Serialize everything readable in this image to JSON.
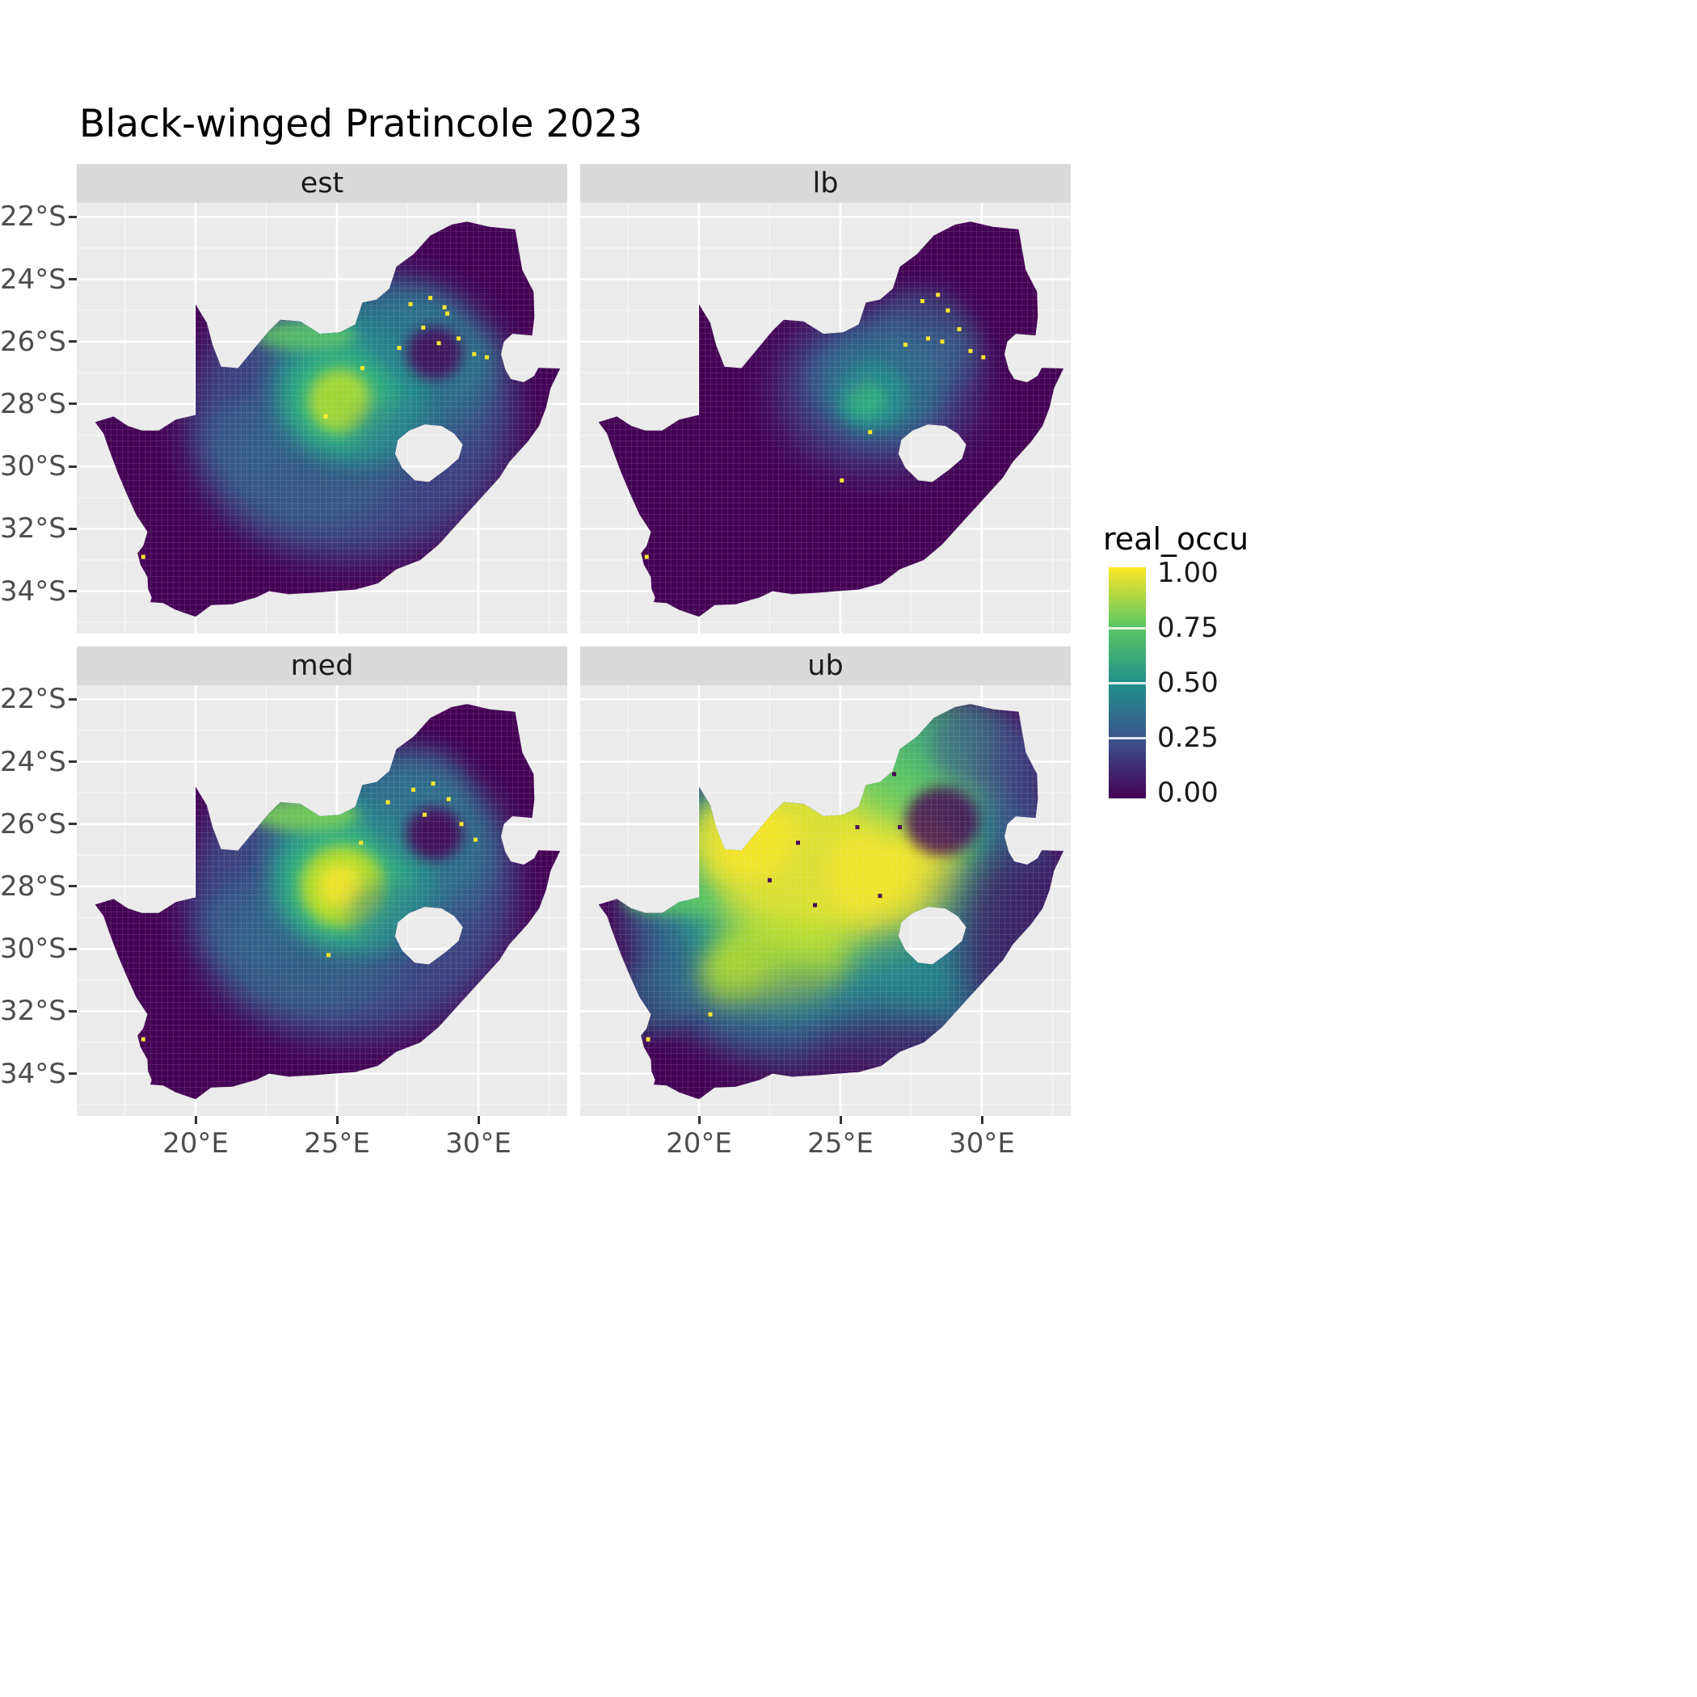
{
  "page": {
    "background": "#ffffff"
  },
  "chart_data": {
    "type": "heatmap",
    "title": "Black-winged Pratincole 2023",
    "region": "South Africa (Lesotho shown as hole, Eswatini notch on east)",
    "palette": "viridis",
    "style": {
      "panel_bg": "#ebebeb",
      "strip_bg": "#d9d9d9",
      "grid_color": "#ffffff",
      "base_color": "#440154",
      "axis_text_color": "#4d4d4d",
      "strip_text_color": "#1a1a1a"
    },
    "x_axis": {
      "ticks": [
        {
          "value": 20,
          "label": "20°E"
        },
        {
          "value": 25,
          "label": "25°E"
        },
        {
          "value": 30,
          "label": "30°E"
        }
      ],
      "minor": [
        17.5,
        22.5,
        27.5,
        32.5
      ],
      "range": [
        15.8,
        33.15
      ]
    },
    "y_axis": {
      "ticks": [
        {
          "value": -22,
          "label": "22°S"
        },
        {
          "value": -24,
          "label": "24°S"
        },
        {
          "value": -26,
          "label": "26°S"
        },
        {
          "value": -28,
          "label": "28°S"
        },
        {
          "value": -30,
          "label": "30°S"
        },
        {
          "value": -32,
          "label": "32°S"
        },
        {
          "value": -34,
          "label": "34°S"
        }
      ],
      "minor": [
        -23,
        -25,
        -27,
        -29,
        -31,
        -33,
        -35
      ],
      "range": [
        -35.35,
        -21.55
      ]
    },
    "legend": {
      "title": "real_occu",
      "position": "right",
      "ticks": [
        {
          "value": 1.0,
          "label": "1.00"
        },
        {
          "value": 0.75,
          "label": "0.75"
        },
        {
          "value": 0.5,
          "label": "0.50"
        },
        {
          "value": 0.25,
          "label": "0.25"
        },
        {
          "value": 0.0,
          "label": "0.00"
        }
      ],
      "gradient_stops": [
        "#440154",
        "#3b528b",
        "#21918c",
        "#5ec962",
        "#fde725"
      ]
    },
    "facets": [
      {
        "label": "est",
        "blobs": [
          [
            25.5,
            -28.4,
            5.8,
            4.6,
            "#3b528b",
            0.8,
            22
          ],
          [
            26.6,
            -26.9,
            4.0,
            2.7,
            "#2a788e",
            0.75,
            22
          ],
          [
            24.0,
            -29.9,
            3.3,
            2.2,
            "#2a788e",
            0.45,
            22
          ],
          [
            21.9,
            -29.1,
            1.8,
            1.3,
            "#31688e",
            0.4,
            14
          ],
          [
            25.5,
            -27.6,
            2.7,
            2.3,
            "#21918c",
            0.85,
            14
          ],
          [
            25.2,
            -27.8,
            1.9,
            1.6,
            "#35b779",
            0.9,
            14
          ],
          [
            25.1,
            -27.9,
            1.1,
            1.0,
            "#bddf26",
            0.8,
            8
          ],
          [
            23.9,
            -25.8,
            1.8,
            0.5,
            "#5ec962",
            0.8,
            8
          ],
          [
            27.7,
            -25.8,
            1.7,
            1.3,
            "#2a788e",
            0.6,
            14
          ],
          [
            29.4,
            -26.6,
            1.2,
            0.9,
            "#2a788e",
            0.5,
            14
          ],
          [
            26.9,
            -28.9,
            1.4,
            1.0,
            "#2a788e",
            0.45,
            14
          ],
          [
            28.45,
            -26.35,
            1.0,
            0.85,
            "#440154",
            0.8,
            8
          ]
        ],
        "speckles": [
          [
            27.6,
            -24.8,
            "#fde725"
          ],
          [
            28.3,
            -24.6,
            "#fde725"
          ],
          [
            28.9,
            -25.1,
            "#fde725"
          ],
          [
            28.05,
            -25.55,
            "#fde725"
          ],
          [
            29.3,
            -25.9,
            "#fde725"
          ],
          [
            28.6,
            -26.05,
            "#fde725"
          ],
          [
            29.85,
            -26.4,
            "#fde725"
          ],
          [
            30.3,
            -26.5,
            "#fde725"
          ],
          [
            27.2,
            -26.2,
            "#fde725"
          ],
          [
            28.8,
            -24.9,
            "#fde725"
          ],
          [
            25.9,
            -26.85,
            "#fde725"
          ],
          [
            24.6,
            -28.4,
            "#fde725"
          ],
          [
            18.15,
            -32.9,
            "#fde725"
          ]
        ]
      },
      {
        "label": "lb",
        "blobs": [
          [
            26.3,
            -27.5,
            3.6,
            2.7,
            "#3b528b",
            0.7,
            22
          ],
          [
            26.4,
            -27.4,
            2.3,
            1.8,
            "#2a788e",
            0.75,
            14
          ],
          [
            26.1,
            -27.7,
            1.3,
            1.1,
            "#21918c",
            0.8,
            8
          ],
          [
            25.9,
            -27.85,
            0.7,
            0.6,
            "#35b779",
            0.75,
            8
          ],
          [
            27.9,
            -25.7,
            1.8,
            1.4,
            "#31688e",
            0.5,
            14
          ],
          [
            28.9,
            -26.5,
            1.2,
            0.9,
            "#31688e",
            0.45,
            14
          ],
          [
            24.9,
            -27.0,
            1.1,
            0.9,
            "#31688e",
            0.4,
            14
          ]
        ],
        "speckles": [
          [
            27.9,
            -24.7,
            "#fde725"
          ],
          [
            28.45,
            -24.5,
            "#fde725"
          ],
          [
            28.8,
            -25.0,
            "#fde725"
          ],
          [
            29.2,
            -25.6,
            "#fde725"
          ],
          [
            28.1,
            -25.9,
            "#fde725"
          ],
          [
            29.6,
            -26.3,
            "#fde725"
          ],
          [
            30.05,
            -26.5,
            "#fde725"
          ],
          [
            28.6,
            -26.0,
            "#fde725"
          ],
          [
            27.3,
            -26.1,
            "#fde725"
          ],
          [
            26.05,
            -28.9,
            "#fde725"
          ],
          [
            25.05,
            -30.45,
            "#fde725"
          ],
          [
            18.15,
            -32.9,
            "#fde725"
          ]
        ]
      },
      {
        "label": "med",
        "blobs": [
          [
            25.5,
            -28.3,
            5.8,
            4.6,
            "#3b528b",
            0.82,
            22
          ],
          [
            26.7,
            -26.7,
            4.0,
            2.7,
            "#2a788e",
            0.8,
            22
          ],
          [
            24.0,
            -29.9,
            3.3,
            2.2,
            "#2a788e",
            0.5,
            22
          ],
          [
            21.9,
            -29.2,
            1.8,
            1.3,
            "#31688e",
            0.4,
            14
          ],
          [
            25.5,
            -27.7,
            2.9,
            2.4,
            "#21918c",
            0.9,
            14
          ],
          [
            25.3,
            -27.9,
            2.2,
            1.9,
            "#35b779",
            0.9,
            14
          ],
          [
            25.2,
            -28.0,
            1.5,
            1.3,
            "#bddf26",
            0.9,
            8
          ],
          [
            25.15,
            -28.0,
            0.8,
            0.7,
            "#fde725",
            0.8,
            8
          ],
          [
            23.9,
            -25.7,
            1.9,
            0.55,
            "#7ad151",
            0.85,
            8
          ],
          [
            27.75,
            -25.7,
            1.8,
            1.4,
            "#2a788e",
            0.65,
            14
          ],
          [
            27.9,
            -24.6,
            1.6,
            1.1,
            "#31688e",
            0.5,
            14
          ],
          [
            26.9,
            -28.9,
            1.5,
            1.1,
            "#2a788e",
            0.5,
            14
          ],
          [
            28.45,
            -26.3,
            1.0,
            0.85,
            "#440154",
            0.85,
            8
          ]
        ],
        "speckles": [
          [
            27.7,
            -24.9,
            "#fde725"
          ],
          [
            28.4,
            -24.7,
            "#fde725"
          ],
          [
            28.95,
            -25.2,
            "#fde725"
          ],
          [
            28.1,
            -25.7,
            "#fde725"
          ],
          [
            29.4,
            -26.0,
            "#fde725"
          ],
          [
            26.8,
            -25.3,
            "#fde725"
          ],
          [
            29.9,
            -26.5,
            "#fde725"
          ],
          [
            24.7,
            -30.2,
            "#fde725"
          ],
          [
            18.15,
            -32.9,
            "#fde725"
          ],
          [
            25.85,
            -26.6,
            "#fde725"
          ]
        ]
      },
      {
        "label": "ub",
        "blobs": [
          [
            25.0,
            -28.6,
            7.6,
            5.6,
            "#31688e",
            0.9,
            22
          ],
          [
            25.2,
            -28.0,
            6.2,
            4.6,
            "#21918c",
            0.92,
            22
          ],
          [
            24.8,
            -27.4,
            5.2,
            3.3,
            "#5ec962",
            0.92,
            22
          ],
          [
            24.6,
            -27.2,
            4.3,
            2.7,
            "#fde725",
            0.8,
            22
          ],
          [
            21.5,
            -26.4,
            1.9,
            1.3,
            "#fde725",
            0.7,
            14
          ],
          [
            26.9,
            -27.6,
            2.3,
            1.8,
            "#fde725",
            0.6,
            14
          ],
          [
            22.9,
            -30.4,
            2.5,
            1.5,
            "#bddf26",
            0.7,
            14
          ],
          [
            21.3,
            -30.9,
            1.4,
            1.0,
            "#bddf26",
            0.6,
            14
          ],
          [
            27.9,
            -24.3,
            2.7,
            1.9,
            "#5ec962",
            0.8,
            22
          ],
          [
            28.9,
            -23.1,
            1.8,
            1.0,
            "#35b779",
            0.6,
            14
          ],
          [
            29.9,
            -23.5,
            1.7,
            1.4,
            "#3b528b",
            0.6,
            14
          ],
          [
            31.4,
            -25.0,
            1.5,
            2.3,
            "#3b528b",
            0.65,
            22
          ],
          [
            19.0,
            -28.45,
            1.7,
            0.5,
            "#5ec962",
            0.75,
            8
          ],
          [
            18.4,
            -31.6,
            1.4,
            1.2,
            "#2a788e",
            0.55,
            14
          ],
          [
            24.0,
            -32.4,
            3.3,
            1.5,
            "#31688e",
            0.55,
            22
          ],
          [
            27.6,
            -30.9,
            2.3,
            1.7,
            "#2a788e",
            0.6,
            22
          ],
          [
            30.0,
            -28.8,
            2.0,
            1.8,
            "#31688e",
            0.5,
            22
          ],
          [
            31.3,
            -29.8,
            2.0,
            3.2,
            "#440154",
            0.65,
            22
          ],
          [
            22.0,
            -34.3,
            4.5,
            1.2,
            "#440154",
            0.55,
            22
          ],
          [
            26.8,
            -33.5,
            3.0,
            1.3,
            "#440154",
            0.6,
            22
          ],
          [
            28.6,
            -25.9,
            1.3,
            1.1,
            "#440154",
            0.8,
            8
          ]
        ],
        "speckles": [
          [
            23.5,
            -26.6,
            "#440154"
          ],
          [
            25.6,
            -26.1,
            "#440154"
          ],
          [
            24.1,
            -28.6,
            "#440154"
          ],
          [
            26.4,
            -28.3,
            "#440154"
          ],
          [
            22.5,
            -27.8,
            "#440154"
          ],
          [
            27.1,
            -26.1,
            "#440154"
          ],
          [
            25.0,
            -24.9,
            "#440154"
          ],
          [
            26.9,
            -24.4,
            "#440154"
          ],
          [
            18.2,
            -32.9,
            "#fde725"
          ],
          [
            20.4,
            -32.1,
            "#fde725"
          ]
        ]
      }
    ]
  }
}
